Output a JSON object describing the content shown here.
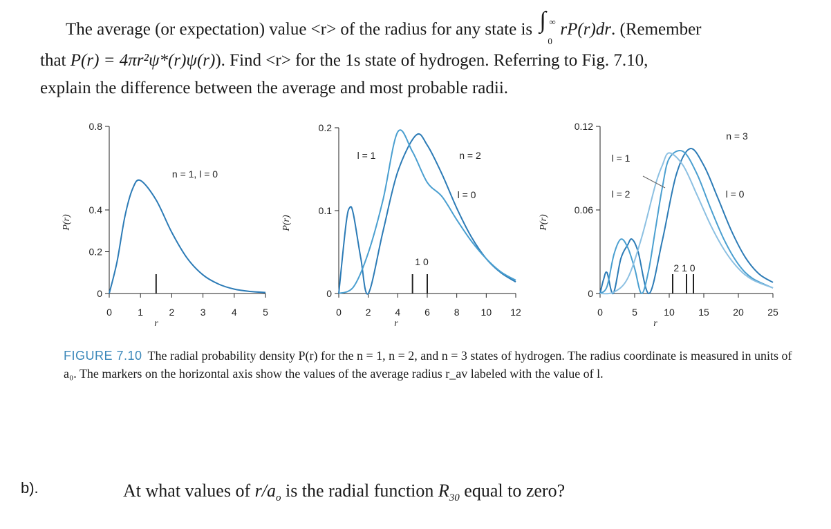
{
  "question_a": {
    "line1_lead": "The average (or expectation) value <r> of the radius for any state is ",
    "integral_upper": "∞",
    "integral_lower": "0",
    "integrand": "rP(r)dr",
    "line1_tail": ". (Remember",
    "line2_lead": "that ",
    "line2_formula": "P(r) = 4πr²ψ*(r)ψ(r)",
    "line2_tail": "). Find <r> for the 1s state of hydrogen. Referring to Fig. 7.10,",
    "line3": "explain the difference between the average and most probable radii."
  },
  "figure": {
    "caption_label": "FIGURE 7.10",
    "caption_text": "The radial probability density P(r) for the n = 1, n = 2, and n = 3 states of hydrogen. The radius coordinate is measured in units of a₀. The markers on the horizontal axis show the values of the average radius r_av labeled with the value of l.",
    "colors": {
      "l0": "#2c7bb6",
      "l1": "#4a9fd0",
      "l2": "#8cc0e2",
      "axis": "#222222"
    }
  },
  "chart_data": [
    {
      "type": "line",
      "title": "n = 1, l = 0",
      "xlabel": "r",
      "ylabel": "P(r)",
      "xlim": [
        0,
        5
      ],
      "ylim": [
        0,
        0.8
      ],
      "xticks": [
        0,
        1,
        2,
        3,
        4,
        5
      ],
      "yticks": [
        0,
        0.2,
        0.4,
        0.8
      ],
      "series": [
        {
          "name": "l = 0",
          "n": 1,
          "l": 0,
          "x": [
            0,
            0.25,
            0.5,
            0.75,
            1,
            1.5,
            2,
            2.5,
            3,
            3.5,
            4,
            4.5,
            5
          ],
          "values": [
            0,
            0.152,
            0.368,
            0.502,
            0.541,
            0.448,
            0.293,
            0.168,
            0.089,
            0.045,
            0.021,
            0.01,
            0.005
          ]
        }
      ],
      "annotations": [
        {
          "label": "n = 1, l = 0"
        }
      ],
      "average_radius_markers": [
        {
          "l": 0,
          "r_av": 1.5
        }
      ]
    },
    {
      "type": "line",
      "xlabel": "r",
      "ylabel": "P(r)",
      "xlim": [
        0,
        12
      ],
      "ylim": [
        0,
        0.2
      ],
      "xticks": [
        0,
        2,
        4,
        6,
        8,
        10,
        12
      ],
      "yticks": [
        0,
        0.1,
        0.2
      ],
      "series": [
        {
          "name": "l = 0",
          "n": 2,
          "l": 0,
          "x": [
            0,
            0.5,
            0.76,
            1,
            1.5,
            2,
            3,
            4,
            5.24,
            6,
            7,
            8,
            9,
            10,
            11,
            12
          ],
          "values": [
            0,
            0.085,
            0.104,
            0.095,
            0.042,
            0,
            0.075,
            0.147,
            0.191,
            0.179,
            0.144,
            0.103,
            0.068,
            0.042,
            0.025,
            0.014
          ]
        },
        {
          "name": "l = 1",
          "n": 2,
          "l": 1,
          "x": [
            0,
            1,
            2,
            3,
            4,
            5,
            6,
            7,
            8,
            9,
            10,
            11,
            12
          ],
          "values": [
            0,
            0.008,
            0.049,
            0.113,
            0.195,
            0.171,
            0.134,
            0.117,
            0.089,
            0.063,
            0.042,
            0.026,
            0.016
          ]
        }
      ],
      "annotations": [
        {
          "label": "n = 2"
        },
        {
          "label": "l = 1"
        },
        {
          "label": "l = 0"
        }
      ],
      "average_radius_markers": [
        {
          "l": 1,
          "r_av": 5
        },
        {
          "l": 0,
          "r_av": 6
        }
      ],
      "marker_labels": "1 0"
    },
    {
      "type": "line",
      "xlabel": "r",
      "ylabel": "P(r)",
      "xlim": [
        0,
        25
      ],
      "ylim": [
        0,
        0.12
      ],
      "xticks": [
        0,
        5,
        10,
        15,
        20,
        25
      ],
      "yticks": [
        0,
        0.06,
        0.12
      ],
      "series": [
        {
          "name": "l = 0",
          "n": 3,
          "l": 0,
          "x": [
            0,
            0.5,
            1,
            1.9,
            3,
            4,
            4.6,
            5.5,
            7.1,
            9,
            11,
            13,
            15,
            17,
            19,
            21,
            23,
            25
          ],
          "values": [
            0,
            0.01,
            0.015,
            0.0,
            0.025,
            0.035,
            0.039,
            0.03,
            0.0,
            0.038,
            0.085,
            0.104,
            0.092,
            0.069,
            0.045,
            0.026,
            0.014,
            0.008
          ]
        },
        {
          "name": "l = 1",
          "n": 3,
          "l": 1,
          "x": [
            0,
            1,
            2,
            3,
            4,
            5,
            6,
            7,
            8,
            9,
            10,
            12,
            14,
            16,
            18,
            20,
            22,
            25
          ],
          "values": [
            0,
            0.005,
            0.028,
            0.039,
            0.033,
            0.018,
            0.0,
            0.016,
            0.046,
            0.076,
            0.097,
            0.102,
            0.086,
            0.061,
            0.038,
            0.021,
            0.011,
            0.004
          ]
        },
        {
          "name": "l = 2",
          "n": 3,
          "l": 2,
          "x": [
            0,
            2,
            4,
            6,
            8,
            9,
            10,
            12,
            14,
            16,
            18,
            20,
            22,
            25
          ],
          "values": [
            0,
            0.001,
            0.011,
            0.04,
            0.078,
            0.092,
            0.101,
            0.092,
            0.071,
            0.049,
            0.031,
            0.018,
            0.01,
            0.004
          ]
        }
      ],
      "annotations": [
        {
          "label": "n = 3"
        },
        {
          "label": "l = 1"
        },
        {
          "label": "l = 2"
        },
        {
          "label": "l = 0"
        }
      ],
      "average_radius_markers": [
        {
          "l": 2,
          "r_av": 10.5
        },
        {
          "l": 1,
          "r_av": 12.5
        },
        {
          "l": 0,
          "r_av": 13.5
        }
      ],
      "marker_labels": "2 1 0"
    }
  ],
  "question_b": {
    "label": "b).",
    "text_lead": "At what values of ",
    "ratio": "r/a",
    "ratio_sub": "o",
    "text_mid": " is the radial function ",
    "func": "R",
    "func_sub": "30",
    "text_tail": " equal to zero?"
  }
}
